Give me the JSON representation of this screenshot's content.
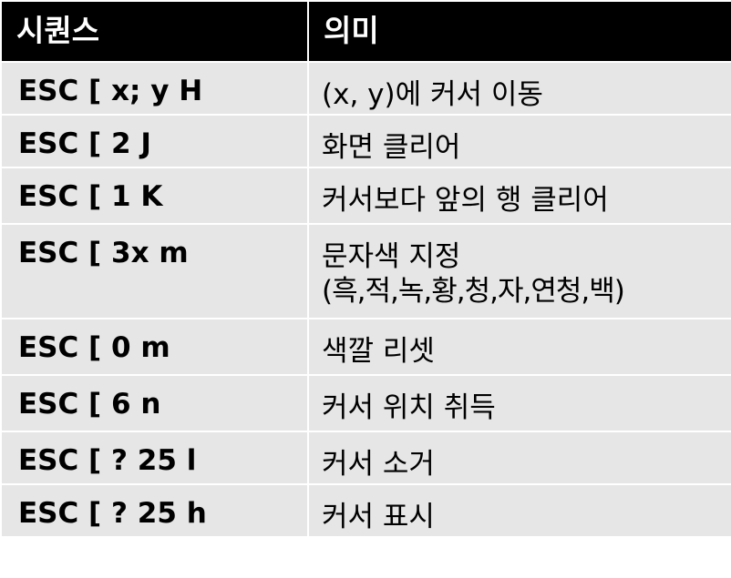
{
  "table": {
    "headers": {
      "sequence": "시퀀스",
      "meaning": "의미"
    },
    "rows": [
      {
        "sequence": "ESC [ x; y H",
        "meaning": "(x, y)에 커서 이동"
      },
      {
        "sequence": "ESC [ 2 J",
        "meaning": "화면 클리어"
      },
      {
        "sequence": "ESC [ 1 K",
        "meaning": "커서보다 앞의 행 클리어"
      },
      {
        "sequence": "ESC [ 3x m",
        "meaning": "문자색 지정",
        "meaning_line2": "(흑,적,녹,황,청,자,연청,백)"
      },
      {
        "sequence": "ESC [ 0 m",
        "meaning": "색깔 리셋"
      },
      {
        "sequence": "ESC [ 6 n",
        "meaning": "커서 위치 취득"
      },
      {
        "sequence": "ESC [ ? 25 l",
        "meaning": "커서 소거"
      },
      {
        "sequence": "ESC [ ? 25 h",
        "meaning": "커서 표시"
      }
    ]
  },
  "colors": {
    "header_bg": "#000000",
    "header_text": "#ffffff",
    "row_bg": "#e6e6e6",
    "row_text": "#000000",
    "border": "#ffffff"
  }
}
